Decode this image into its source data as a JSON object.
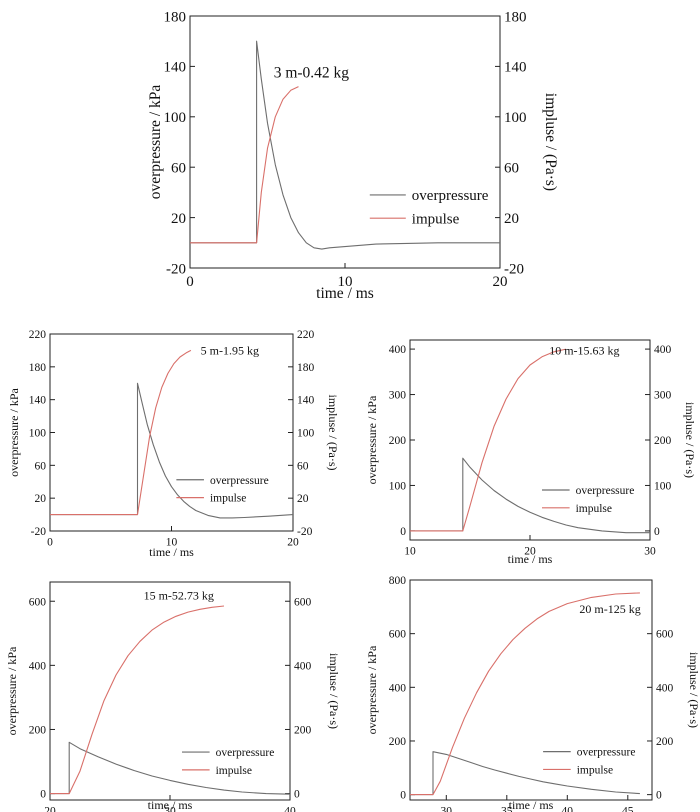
{
  "colors": {
    "overpressure": "#6e6e6e",
    "impulse": "#d9706a",
    "axis": "#222222"
  },
  "chart_data": [
    {
      "type": "line",
      "annotation": "3 m-0.42 kg",
      "xlabel": "time / ms",
      "ylabel": "overpressure / kPa",
      "ylabel_right": "impluse / (Pa·s)",
      "xlim": [
        0,
        20
      ],
      "ylim": [
        -20,
        180
      ],
      "y2lim": [
        -20,
        180
      ],
      "xticks": [
        0,
        10,
        20
      ],
      "yticks": [
        -20,
        20,
        60,
        100,
        140,
        180
      ],
      "y2ticks": [
        -20,
        20,
        60,
        100,
        140,
        180
      ],
      "legend_position": "lower-right",
      "series": [
        {
          "name": "overpressure",
          "axis": "left",
          "x": [
            0,
            4.3,
            4.3,
            4.6,
            5.0,
            5.5,
            6.0,
            6.5,
            7.0,
            7.5,
            8.0,
            8.5,
            9.0,
            10,
            11,
            12,
            14,
            16,
            18,
            20
          ],
          "y": [
            0,
            0,
            160,
            130,
            95,
            62,
            38,
            20,
            8,
            0,
            -4,
            -5,
            -4,
            -3,
            -2,
            -1,
            -0.5,
            0,
            0,
            0
          ]
        },
        {
          "name": "impulse",
          "axis": "right",
          "x": [
            0,
            4.3,
            4.6,
            5.0,
            5.5,
            6.0,
            6.5,
            7.0
          ],
          "y": [
            0,
            0,
            40,
            75,
            100,
            114,
            121,
            124
          ]
        }
      ]
    },
    {
      "type": "line",
      "annotation": "5 m-1.95 kg",
      "xlabel": "time / ms",
      "ylabel": "overpressure / kPa",
      "ylabel_right": "impluse / (Pa·s)",
      "xlim": [
        0,
        20
      ],
      "ylim": [
        -20,
        220
      ],
      "y2lim": [
        -20,
        220
      ],
      "xticks": [
        0,
        10,
        20
      ],
      "yticks": [
        -20,
        20,
        60,
        100,
        140,
        180,
        220
      ],
      "y2ticks": [
        -20,
        20,
        60,
        100,
        140,
        180,
        220
      ],
      "legend_position": "lower-right",
      "series": [
        {
          "name": "overpressure",
          "axis": "left",
          "x": [
            0,
            7.2,
            7.2,
            7.6,
            8.0,
            8.5,
            9.0,
            9.5,
            10,
            10.5,
            11,
            11.5,
            12,
            13,
            14,
            15,
            16,
            18,
            20
          ],
          "y": [
            0,
            0,
            160,
            135,
            110,
            85,
            64,
            47,
            34,
            24,
            16,
            10,
            5,
            -1,
            -4,
            -4,
            -3.5,
            -2,
            0
          ]
        },
        {
          "name": "impulse",
          "axis": "right",
          "x": [
            0,
            7.2,
            7.7,
            8.2,
            8.7,
            9.2,
            9.7,
            10.2,
            10.7,
            11.2,
            11.6
          ],
          "y": [
            0,
            0,
            48,
            95,
            130,
            155,
            172,
            184,
            192,
            197,
            200
          ]
        }
      ]
    },
    {
      "type": "line",
      "annotation": "10 m-15.63 kg",
      "xlabel": "time / ms",
      "ylabel": "overpressure / kPa",
      "ylabel_right": "impluse / (Pa·s)",
      "xlim": [
        10,
        30
      ],
      "ylim": [
        -20,
        420
      ],
      "y2lim": [
        -20,
        420
      ],
      "xticks": [
        10,
        20,
        30
      ],
      "yticks": [
        0,
        100,
        200,
        300,
        400
      ],
      "y2ticks": [
        0,
        100,
        200,
        300,
        400
      ],
      "legend_position": "lower-right",
      "series": [
        {
          "name": "overpressure",
          "axis": "left",
          "x": [
            10,
            14.4,
            14.4,
            15,
            16,
            17,
            18,
            19,
            20,
            21,
            22,
            23,
            24,
            26,
            28,
            30
          ],
          "y": [
            0,
            0,
            160,
            140,
            112,
            89,
            70,
            54,
            41,
            30,
            21,
            13,
            7,
            0,
            -4,
            -4
          ]
        },
        {
          "name": "impulse",
          "axis": "right",
          "x": [
            10,
            14.4,
            15,
            16,
            17,
            18,
            19,
            20,
            21,
            22,
            23
          ],
          "y": [
            0,
            0,
            55,
            150,
            230,
            290,
            335,
            365,
            383,
            394,
            400
          ]
        }
      ]
    },
    {
      "type": "line",
      "annotation": "15 m-52.73 kg",
      "xlabel": "time / ms",
      "ylabel": "overpressure / kPa",
      "ylabel_right": "impluse / (Pa·s)",
      "xlim": [
        20,
        40
      ],
      "ylim": [
        -20,
        660
      ],
      "y2lim": [
        -20,
        660
      ],
      "xticks": [
        20,
        30,
        40
      ],
      "yticks": [
        0,
        200,
        400,
        600
      ],
      "y2ticks": [
        0,
        200,
        400,
        600
      ],
      "legend_position": "lower-right",
      "series": [
        {
          "name": "overpressure",
          "axis": "left",
          "x": [
            20,
            21.6,
            21.6,
            22.5,
            24,
            25.5,
            27,
            28.5,
            30,
            31.5,
            33,
            34.5,
            36,
            38,
            40
          ],
          "y": [
            0,
            0,
            160,
            140,
            115,
            92,
            72,
            55,
            41,
            29,
            19,
            11,
            5,
            0,
            -2
          ]
        },
        {
          "name": "impulse",
          "axis": "right",
          "x": [
            20,
            21.6,
            22.5,
            23.5,
            24.5,
            25.5,
            26.5,
            27.5,
            28.5,
            29.5,
            30.5,
            31.5,
            32.5,
            33.5,
            34.5
          ],
          "y": [
            0,
            0,
            70,
            185,
            290,
            370,
            430,
            475,
            510,
            535,
            553,
            566,
            575,
            581,
            585
          ]
        }
      ]
    },
    {
      "type": "line",
      "annotation": "20 m-125 kg",
      "xlabel": "time / ms",
      "ylabel": "overpressure / kPa",
      "ylabel_right": "impluse / (Pa·s)",
      "xlim": [
        27,
        47
      ],
      "ylim": [
        -20,
        800
      ],
      "y2lim": [
        -20,
        800
      ],
      "xticks": [
        30,
        35,
        40,
        45
      ],
      "yticks": [
        0,
        200,
        400,
        600,
        800
      ],
      "y2ticks": [
        0,
        200,
        400,
        600
      ],
      "legend_position": "lower-right",
      "series": [
        {
          "name": "overpressure",
          "axis": "left",
          "x": [
            27,
            28.9,
            28.9,
            30,
            31,
            32,
            33,
            34,
            35,
            36,
            37,
            38,
            39,
            40,
            42,
            44,
            46
          ],
          "y": [
            0,
            0,
            160,
            150,
            135,
            120,
            105,
            92,
            80,
            68,
            58,
            48,
            40,
            32,
            20,
            10,
            4
          ]
        },
        {
          "name": "impulse",
          "axis": "right",
          "x": [
            27,
            28.9,
            29.5,
            30.5,
            31.5,
            32.5,
            33.5,
            34.5,
            35.5,
            36.5,
            37.5,
            38.5,
            40,
            42,
            44,
            46
          ],
          "y": [
            0,
            0,
            50,
            175,
            285,
            380,
            460,
            525,
            578,
            620,
            655,
            683,
            712,
            735,
            748,
            752
          ]
        }
      ]
    }
  ]
}
